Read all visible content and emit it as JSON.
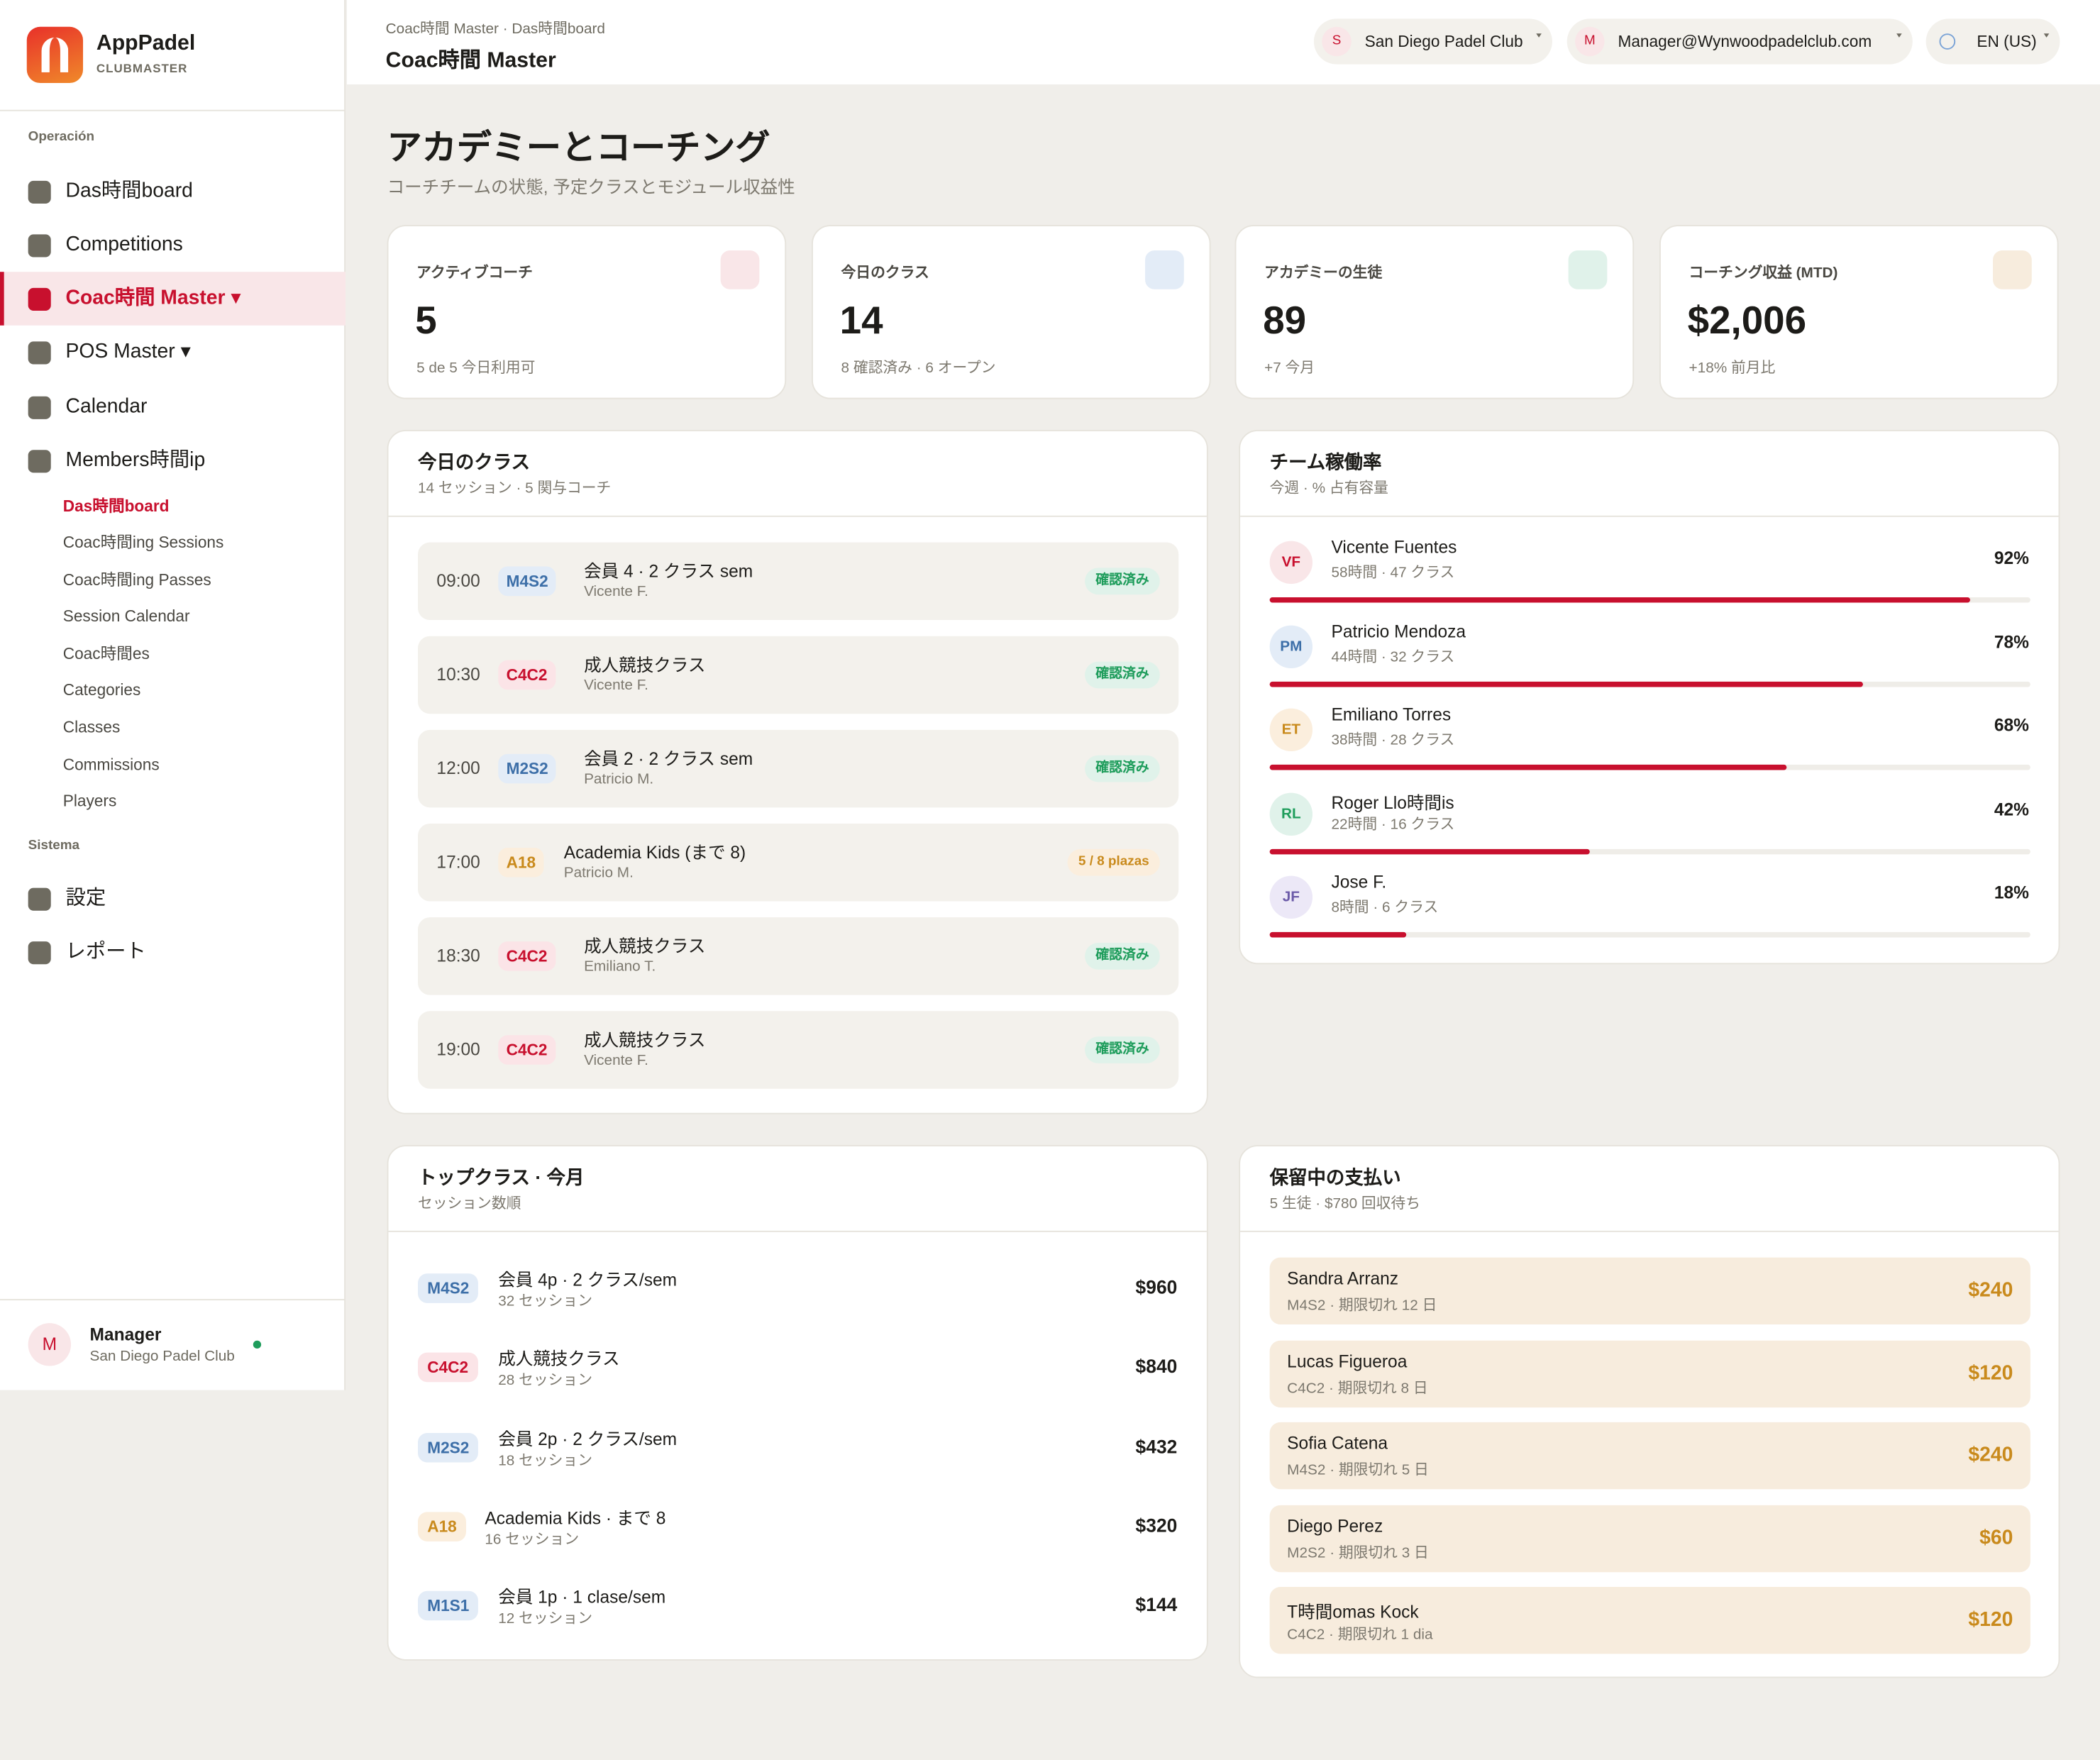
{
  "sidebar": {
    "brand": "AppPadel",
    "brand_sub": "CLUBMASTER",
    "operation": {
      "label": "Operación",
      "items": [
        "Das時間board",
        "Competitions",
        "Coac時間 Master ▾",
        "POS Master ▾",
        "Calendar",
        "Members時間ip"
      ]
    },
    "sub_items": [
      "Das時間board",
      "Coac時間ing Sessions",
      "Coac時間ing Passes",
      "Session Calendar",
      "Coac時間es",
      "Categories",
      "Classes",
      "Commissions",
      "Players"
    ],
    "system": {
      "label": "Sistema",
      "items": [
        "設定",
        "レポート"
      ]
    },
    "user": {
      "avatar": "M",
      "name": "Manager",
      "club": "San Diego Padel Club"
    }
  },
  "header": {
    "breadcrumb": "Coac時間 Master · Das時間board",
    "title": "Coac時間 Master",
    "pills": [
      {
        "avatar": "S",
        "label": "San Diego Padel Club"
      },
      {
        "avatar": "M",
        "label": "Manager@Wynwoodpadelclub.com"
      },
      {
        "label": "EN (US)"
      }
    ]
  },
  "page": {
    "title": "アカデミーとコーチング",
    "subtitle": "コーチチームの状態, 予定クラスとモジュール収益性"
  },
  "kpis": [
    {
      "label": "アクティブコーチ",
      "value": "5",
      "note": "5 de 5 今日利用可"
    },
    {
      "label": "今日のクラス",
      "value": "14",
      "note": "8 確認済み · 6 オープン"
    },
    {
      "label": "アカデミーの生徒",
      "value": "89",
      "note": "+7 今月"
    },
    {
      "label": "コーチング収益 (MTD)",
      "value": "$2,006",
      "note": "+18% 前月比"
    }
  ],
  "classes": {
    "title": "今日のクラス",
    "subtitle": "14 セッション · 5 関与コーチ",
    "rows": [
      {
        "time": "09:00",
        "code": "M4S2",
        "name": "会員 4 · 2 クラス sem",
        "coach": "Vicente F.",
        "status": "確認済み"
      },
      {
        "time": "10:30",
        "code": "C4C2",
        "name": "成人競技クラス",
        "coach": "Vicente F.",
        "status": "確認済み"
      },
      {
        "time": "12:00",
        "code": "M2S2",
        "name": "会員 2 · 2 クラス sem",
        "coach": "Patricio M.",
        "status": "確認済み"
      },
      {
        "time": "17:00",
        "code": "A18",
        "name": "Academia Kids (まで 8)",
        "coach": "Patricio M.",
        "status": "5 / 8 plazas"
      },
      {
        "time": "18:30",
        "code": "C4C2",
        "name": "成人競技クラス",
        "coach": "Emiliano T.",
        "status": "確認済み"
      },
      {
        "time": "19:00",
        "code": "C4C2",
        "name": "成人競技クラス",
        "coach": "Vicente F.",
        "status": "確認済み"
      }
    ]
  },
  "utilization": {
    "title": "チーム稼働率",
    "subtitle": "今週 · % 占有容量",
    "coaches": [
      {
        "initials": "VF",
        "name": "Vicente Fuentes",
        "detail": "58時間 · 47 クラス",
        "value": 92,
        "value_label": "92%"
      },
      {
        "initials": "PM",
        "name": "Patricio Mendoza",
        "detail": "44時間 · 32 クラス",
        "value": 78,
        "value_label": "78%"
      },
      {
        "initials": "ET",
        "name": "Emiliano Torres",
        "detail": "38時間 · 28 クラス",
        "value": 68,
        "value_label": "68%"
      },
      {
        "initials": "RL",
        "name": "Roger Llo時間is",
        "detail": "22時間 · 16 クラス",
        "value": 42,
        "value_label": "42%"
      },
      {
        "initials": "JF",
        "name": "Jose F.",
        "detail": "8時間 · 6 クラス",
        "value": 18,
        "value_label": "18%"
      }
    ]
  },
  "top_classes": {
    "title": "トップクラス · 今月",
    "subtitle": "セッション数順",
    "rows": [
      {
        "code": "M4S2",
        "name": "会員 4p · 2 クラス/sem",
        "sessions": "32 セッション",
        "amount": "$960"
      },
      {
        "code": "C4C2",
        "name": "成人競技クラス",
        "sessions": "28 セッション",
        "amount": "$840"
      },
      {
        "code": "M2S2",
        "name": "会員 2p · 2 クラス/sem",
        "sessions": "18 セッション",
        "amount": "$432"
      },
      {
        "code": "A18",
        "name": "Academia Kids · まで 8",
        "sessions": "16 セッション",
        "amount": "$320"
      },
      {
        "code": "M1S1",
        "name": "会員 1p · 1 clase/sem",
        "sessions": "12 セッション",
        "amount": "$144"
      }
    ]
  },
  "payments": {
    "title": "保留中の支払い",
    "subtitle": "5 生徒 · $780 回収待ち",
    "rows": [
      {
        "name": "Sandra Arranz",
        "detail": "M4S2 · 期限切れ 12 日",
        "amount": "$240"
      },
      {
        "name": "Lucas Figueroa",
        "detail": "C4C2 · 期限切れ 8 日",
        "amount": "$120"
      },
      {
        "name": "Sofia Catena",
        "detail": "M4S2 · 期限切れ 5 日",
        "amount": "$240"
      },
      {
        "name": "Diego Perez",
        "detail": "M2S2 · 期限切れ 3 日",
        "amount": "$60"
      },
      {
        "name": "T時間omas Kock",
        "detail": "C4C2 · 期限切れ 1 dia",
        "amount": "$120"
      }
    ]
  }
}
